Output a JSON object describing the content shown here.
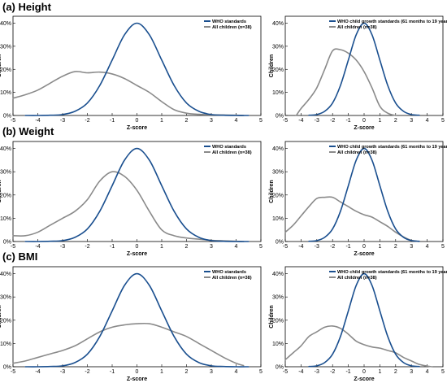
{
  "sections": [
    {
      "title": "(a) Height"
    },
    {
      "title": "(b) Weight"
    },
    {
      "title": "(c) BMI"
    }
  ],
  "colors": {
    "who": "#1a4f8f",
    "children": "#8a8a8a",
    "axis": "#000000"
  },
  "chart_data": [
    {
      "panel": "a-left",
      "section": "(a) Height",
      "type": "line",
      "xlabel": "Z-score",
      "ylabel": "Children",
      "xlim": [
        -5,
        5
      ],
      "ylim": [
        0,
        43
      ],
      "xticks": [
        -5,
        -4,
        -3,
        -2,
        -1,
        0,
        1,
        2,
        3,
        4,
        5
      ],
      "yticks": [
        0,
        10,
        20,
        30,
        40
      ],
      "ytick_suffix": "%",
      "legend": "top-right",
      "series": [
        {
          "name": "WHO standards",
          "key": "who",
          "x": [
            -4.5,
            -4,
            -3.5,
            -3,
            -2.5,
            -2,
            -1.5,
            -1,
            -0.5,
            0,
            0.5,
            1,
            1.5,
            2,
            2.5,
            3,
            3.5,
            4,
            4.5
          ],
          "y": [
            0,
            0,
            0.1,
            0.4,
            1.8,
            5.4,
            13,
            24,
            35,
            40,
            35,
            24,
            13,
            5.4,
            1.8,
            0.4,
            0.1,
            0,
            0
          ]
        },
        {
          "name": "All children (n=38)",
          "key": "children",
          "x": [
            -5,
            -4.5,
            -4,
            -3.5,
            -3,
            -2.5,
            -2,
            -1.5,
            -1,
            -0.5,
            0,
            0.5,
            1,
            1.5,
            2,
            2.5,
            3,
            3.5,
            4,
            4.3
          ],
          "y": [
            7.5,
            9,
            11,
            14,
            17,
            19,
            18.5,
            18.8,
            18,
            16,
            13,
            10,
            6,
            2.5,
            1,
            0.5,
            0.3,
            0.2,
            0.1,
            0
          ]
        }
      ]
    },
    {
      "panel": "a-right",
      "section": "(a) Height",
      "type": "line",
      "xlabel": "Z-score",
      "ylabel": "Children",
      "xlim": [
        -5,
        5
      ],
      "ylim": [
        0,
        43
      ],
      "xticks": [
        -5,
        -4,
        -3,
        -2,
        -1,
        0,
        1,
        2,
        3,
        4,
        5
      ],
      "yticks": [
        0,
        10,
        20,
        30,
        40
      ],
      "ytick_suffix": "%",
      "legend": "top-right",
      "series": [
        {
          "name": "WHO child growth standards (61 months to 19 years)",
          "key": "who",
          "x": [
            -3.5,
            -3,
            -2.5,
            -2,
            -1.5,
            -1,
            -0.5,
            0,
            0.5,
            1,
            1.5,
            2,
            2.5,
            3,
            3.5
          ],
          "y": [
            0.1,
            0.4,
            1.8,
            5.4,
            13,
            24,
            35,
            40,
            35,
            24,
            13,
            5.4,
            1.8,
            0.4,
            0.1
          ]
        },
        {
          "name": "All children (n=38)",
          "key": "children",
          "x": [
            -4.3,
            -4,
            -3.5,
            -3,
            -2.5,
            -2,
            -1.5,
            -1,
            -0.5,
            0,
            0.5,
            1,
            1.5,
            2
          ],
          "y": [
            0,
            3,
            7,
            12,
            20,
            28,
            28.5,
            27,
            24,
            19,
            12,
            4,
            1,
            0
          ]
        }
      ]
    },
    {
      "panel": "b-left",
      "section": "(b) Weight",
      "type": "line",
      "xlabel": "Z-score",
      "ylabel": "Children",
      "xlim": [
        -5,
        5
      ],
      "ylim": [
        0,
        43
      ],
      "xticks": [
        -5,
        -4,
        -3,
        -2,
        -1,
        0,
        1,
        2,
        3,
        4,
        5
      ],
      "yticks": [
        0,
        10,
        20,
        30,
        40
      ],
      "ytick_suffix": "%",
      "legend": "top-right",
      "series": [
        {
          "name": "WHO standards",
          "key": "who",
          "x": [
            -4.5,
            -4,
            -3.5,
            -3,
            -2.5,
            -2,
            -1.5,
            -1,
            -0.5,
            0,
            0.5,
            1,
            1.5,
            2,
            2.5,
            3,
            3.5,
            4,
            4.5
          ],
          "y": [
            0,
            0,
            0.1,
            0.4,
            1.8,
            5.4,
            13,
            24,
            35,
            40,
            35,
            24,
            13,
            5.4,
            1.8,
            0.4,
            0.1,
            0,
            0
          ]
        },
        {
          "name": "All children (n=38)",
          "key": "children",
          "x": [
            -5,
            -4.5,
            -4,
            -3.5,
            -3,
            -2.5,
            -2,
            -1.5,
            -1,
            -0.5,
            0,
            0.5,
            1,
            1.5,
            2,
            2.5,
            3,
            3.5,
            4,
            4.3
          ],
          "y": [
            2.5,
            2.5,
            4,
            7,
            10,
            13,
            18,
            26,
            30,
            28,
            22,
            13,
            5,
            2.5,
            1.5,
            1,
            0.5,
            0.3,
            0.1,
            0
          ]
        }
      ]
    },
    {
      "panel": "b-right",
      "section": "(b) Weight",
      "type": "line",
      "xlabel": "Z-score",
      "ylabel": "Children",
      "xlim": [
        -5,
        5
      ],
      "ylim": [
        0,
        43
      ],
      "xticks": [
        -5,
        -4,
        -3,
        -2,
        -1,
        0,
        1,
        2,
        3,
        4,
        5
      ],
      "yticks": [
        0,
        10,
        20,
        30,
        40
      ],
      "ytick_suffix": "%",
      "legend": "top-right",
      "series": [
        {
          "name": "WHO child growth standards (61 months to 19 years)",
          "key": "who",
          "x": [
            -3.5,
            -3,
            -2.5,
            -2,
            -1.5,
            -1,
            -0.5,
            0,
            0.5,
            1,
            1.5,
            2,
            2.5,
            3,
            3.5
          ],
          "y": [
            0.1,
            0.4,
            1.8,
            5.4,
            13,
            24,
            35,
            40,
            35,
            24,
            13,
            5.4,
            1.8,
            0.4,
            0.1
          ]
        },
        {
          "name": "All children (n=38)",
          "key": "children",
          "x": [
            -5,
            -4.5,
            -4,
            -3.5,
            -3,
            -2.5,
            -2,
            -1.5,
            -1,
            -0.5,
            0,
            0.5,
            1,
            1.5,
            2,
            2.5,
            3,
            3.5
          ],
          "y": [
            4,
            7,
            11,
            15,
            18.5,
            19,
            19,
            17,
            15,
            13,
            11.5,
            10.5,
            8.5,
            6.5,
            4,
            2,
            0.5,
            0
          ]
        }
      ]
    },
    {
      "panel": "c-left",
      "section": "(c) BMI",
      "type": "line",
      "xlabel": "Z-score",
      "ylabel": "Children",
      "xlim": [
        -5,
        5
      ],
      "ylim": [
        0,
        43
      ],
      "xticks": [
        -5,
        -4,
        -3,
        -2,
        -1,
        0,
        1,
        2,
        3,
        4,
        5
      ],
      "yticks": [
        0,
        10,
        20,
        30,
        40
      ],
      "ytick_suffix": "%",
      "legend": "top-right",
      "series": [
        {
          "name": "WHO standards",
          "key": "who",
          "x": [
            -4.5,
            -4,
            -3.5,
            -3,
            -2.5,
            -2,
            -1.5,
            -1,
            -0.5,
            0,
            0.5,
            1,
            1.5,
            2,
            2.5,
            3,
            3.5,
            4,
            4.5
          ],
          "y": [
            0,
            0,
            0.1,
            0.4,
            1.8,
            5.4,
            13,
            24,
            35,
            40,
            35,
            24,
            13,
            5.4,
            1.8,
            0.4,
            0.1,
            0,
            0
          ]
        },
        {
          "name": "All children (n=38)",
          "key": "children",
          "x": [
            -5,
            -4.5,
            -4,
            -3.5,
            -3,
            -2.5,
            -2,
            -1.5,
            -1,
            -0.5,
            0,
            0.5,
            1,
            1.5,
            2,
            2.5,
            3,
            3.5,
            4,
            4.3
          ],
          "y": [
            1.5,
            2.5,
            4,
            5.5,
            7,
            9,
            12,
            15,
            17,
            18,
            18.5,
            18.5,
            17,
            15,
            13,
            10,
            7,
            4,
            1.5,
            0.5
          ]
        }
      ]
    },
    {
      "panel": "c-right",
      "section": "(c) BMI",
      "type": "line",
      "xlabel": "Z-score",
      "ylabel": "Children",
      "xlim": [
        -5,
        5
      ],
      "ylim": [
        0,
        43
      ],
      "xticks": [
        -5,
        -4,
        -3,
        -2,
        -1,
        0,
        1,
        2,
        3,
        4,
        5
      ],
      "yticks": [
        0,
        10,
        20,
        30,
        40
      ],
      "ytick_suffix": "%",
      "legend": "top-right",
      "series": [
        {
          "name": "WHO child growth standards (61 months to 19 years)",
          "key": "who",
          "x": [
            -3.5,
            -3,
            -2.5,
            -2,
            -1.5,
            -1,
            -0.5,
            0,
            0.5,
            1,
            1.5,
            2,
            2.5,
            3,
            3.5
          ],
          "y": [
            0.1,
            0.4,
            1.8,
            5.4,
            13,
            24,
            35,
            40,
            35,
            24,
            13,
            5.4,
            1.8,
            0.4,
            0.1
          ]
        },
        {
          "name": "All children (n=38)",
          "key": "children",
          "x": [
            -5,
            -4.5,
            -4,
            -3.5,
            -3,
            -2.5,
            -2,
            -1.5,
            -1,
            -0.5,
            0,
            0.5,
            1,
            1.5,
            2,
            2.5,
            3,
            3.5,
            4,
            4.3
          ],
          "y": [
            3,
            6,
            9,
            13,
            15,
            17,
            17.5,
            16.5,
            14,
            11,
            9.5,
            8.5,
            8,
            7,
            6,
            4,
            2.5,
            1,
            0.3,
            0
          ]
        }
      ]
    }
  ]
}
